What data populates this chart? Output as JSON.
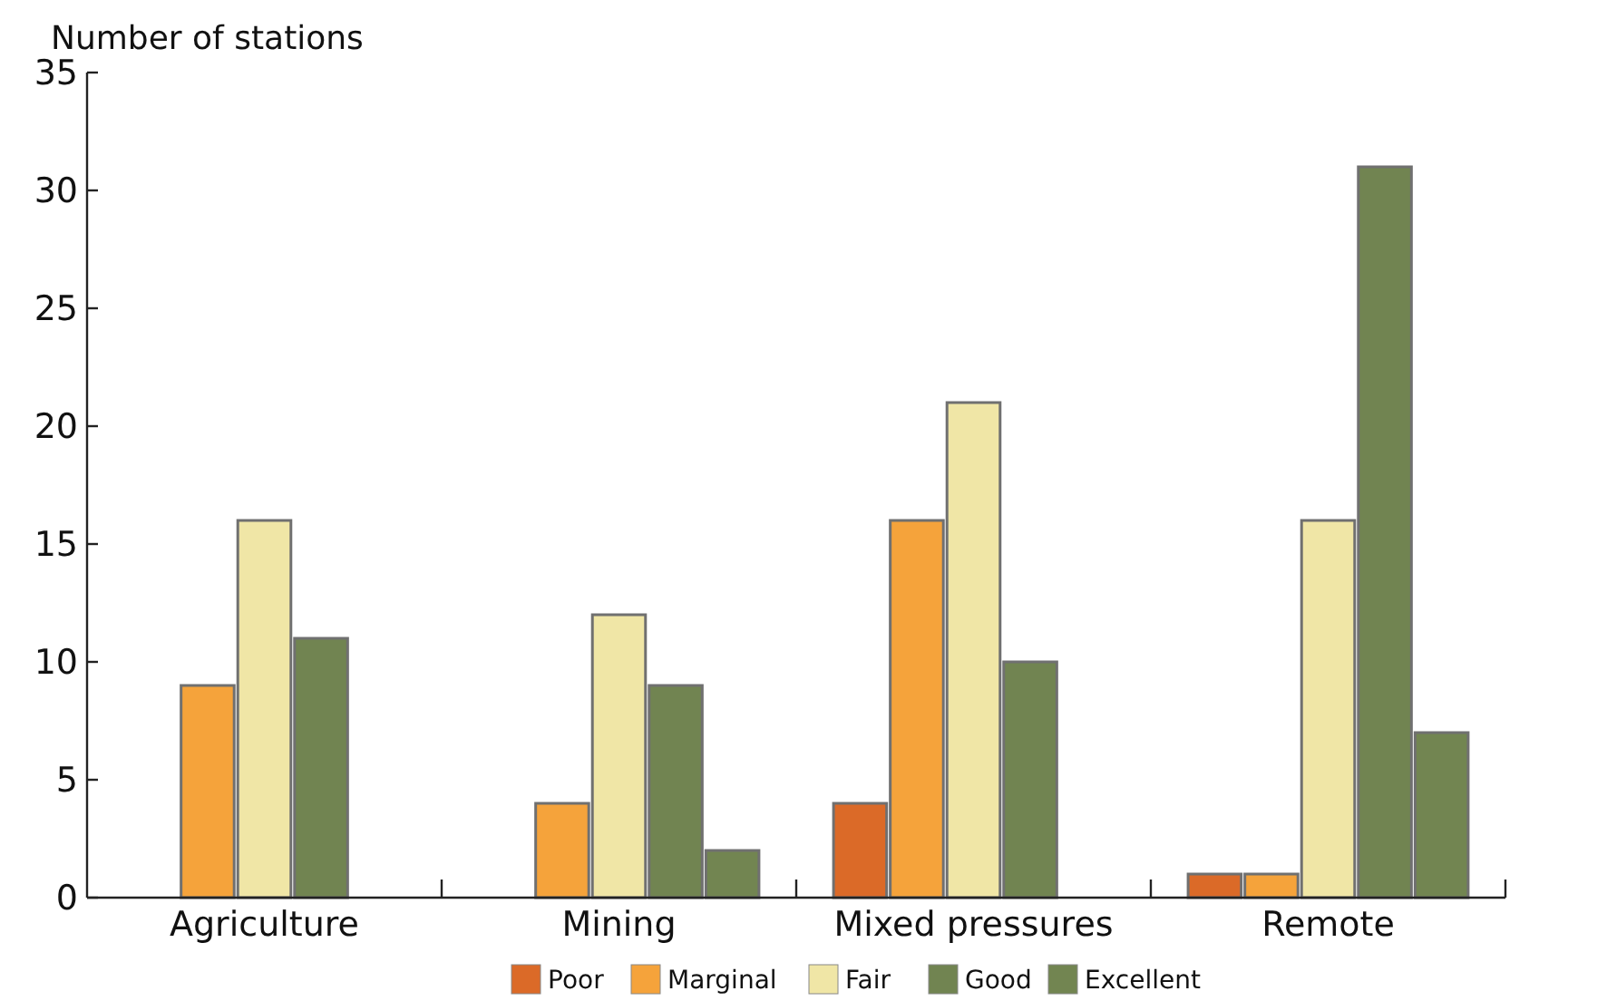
{
  "chart_data": {
    "type": "bar",
    "ylabel": "Number of stations",
    "categories": [
      "Agriculture",
      "Mining",
      "Mixed pressures",
      "Remote"
    ],
    "series": [
      {
        "name": "Poor",
        "color": "#db6a28",
        "values": [
          0,
          0,
          4,
          1
        ]
      },
      {
        "name": "Marginal",
        "color": "#f5a33b",
        "values": [
          9,
          4,
          16,
          1
        ]
      },
      {
        "name": "Fair",
        "color": "#f0e6a6",
        "values": [
          16,
          12,
          21,
          16
        ]
      },
      {
        "name": "Good",
        "color": "#718451",
        "values": [
          11,
          9,
          10,
          31
        ]
      },
      {
        "name": "Excellent",
        "color": "#728551",
        "values": [
          0,
          2,
          0,
          7
        ]
      }
    ],
    "ylim": [
      0,
      35
    ],
    "yticks": [
      0,
      5,
      10,
      15,
      20,
      25,
      30,
      35
    ],
    "legend": "bottom",
    "grid": false
  }
}
